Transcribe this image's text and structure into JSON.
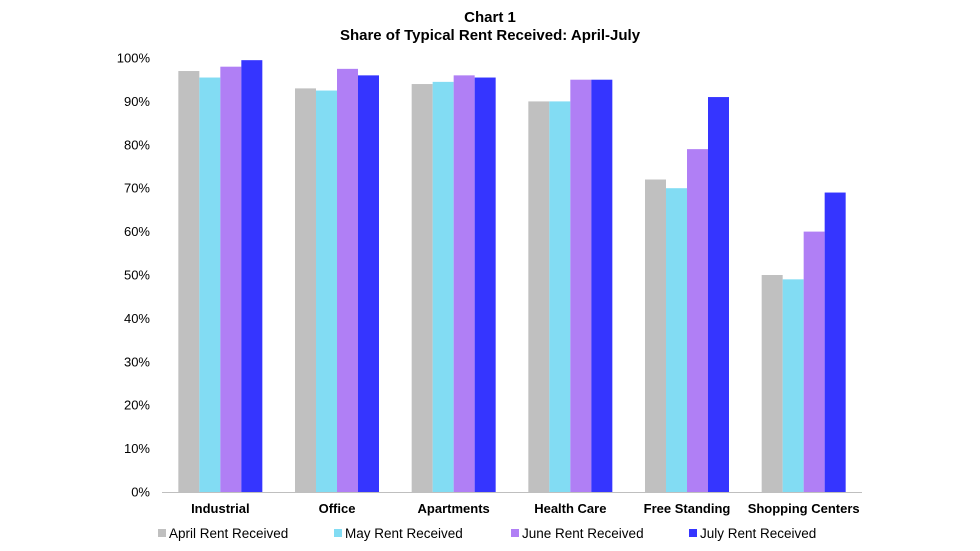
{
  "chart_data": {
    "type": "bar",
    "title": "Chart 1",
    "subtitle": "Share of Typical Rent Received: April-July",
    "xlabel": "",
    "ylabel": "",
    "ylim": [
      0,
      100
    ],
    "yticks": [
      "0%",
      "10%",
      "20%",
      "30%",
      "40%",
      "50%",
      "60%",
      "70%",
      "80%",
      "90%",
      "100%"
    ],
    "categories": [
      "Industrial",
      "Office",
      "Apartments",
      "Health Care",
      "Free Standing",
      "Shopping Centers"
    ],
    "series": [
      {
        "name": "April Rent Received",
        "color": "#c0c0c0",
        "values": [
          97,
          93,
          94,
          90,
          72,
          50
        ]
      },
      {
        "name": "May Rent Received",
        "color": "#82dcf3",
        "values": [
          95.5,
          92.5,
          94.5,
          90,
          70,
          49
        ]
      },
      {
        "name": "June Rent Received",
        "color": "#b07ff5",
        "values": [
          98,
          97.5,
          96,
          95,
          79,
          60
        ]
      },
      {
        "name": "July Rent Received",
        "color": "#3535ff",
        "values": [
          99.5,
          96,
          95.5,
          95,
          91,
          69
        ]
      }
    ],
    "grid": false,
    "legend": "bottom"
  }
}
